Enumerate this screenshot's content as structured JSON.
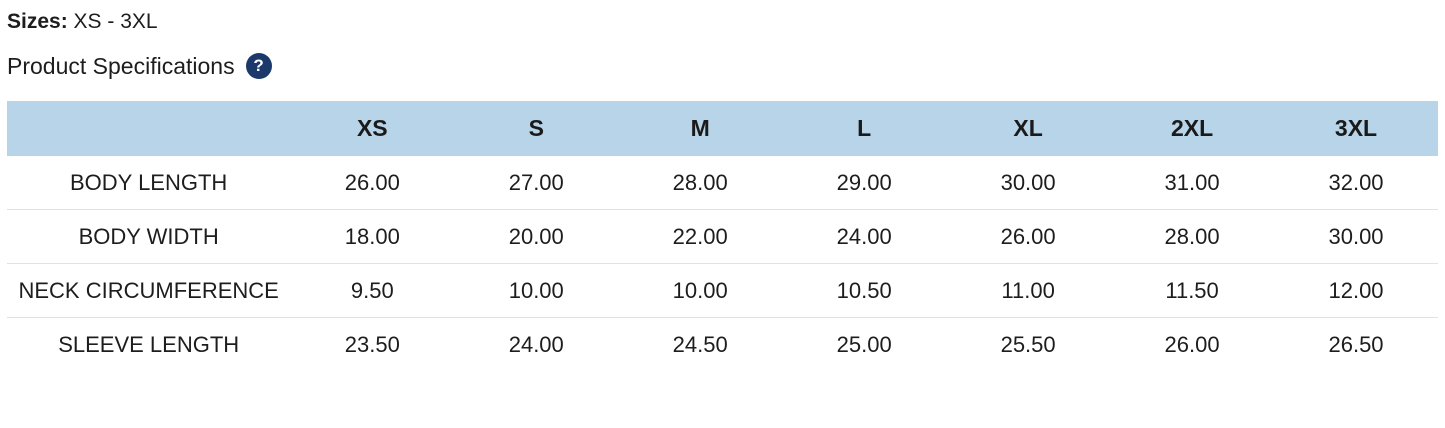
{
  "page": {
    "sizes_label": "Sizes:",
    "sizes_value": " XS - 3XL",
    "section_title": "Product Specifications",
    "help_icon_glyph": "?"
  },
  "table": {
    "columns": [
      "",
      "XS",
      "S",
      "M",
      "L",
      "XL",
      "2XL",
      "3XL"
    ],
    "rows": [
      {
        "label": "BODY LENGTH",
        "values": [
          "26.00",
          "27.00",
          "28.00",
          "29.00",
          "30.00",
          "31.00",
          "32.00"
        ]
      },
      {
        "label": "BODY WIDTH",
        "values": [
          "18.00",
          "20.00",
          "22.00",
          "24.00",
          "26.00",
          "28.00",
          "30.00"
        ]
      },
      {
        "label": "NECK CIRCUMFERENCE",
        "values": [
          "9.50",
          "10.00",
          "10.00",
          "10.50",
          "11.00",
          "11.50",
          "12.00"
        ]
      },
      {
        "label": "SLEEVE LENGTH",
        "values": [
          "23.50",
          "24.00",
          "24.50",
          "25.00",
          "25.50",
          "26.00",
          "26.50"
        ]
      }
    ]
  },
  "colors": {
    "header_background": "#b8d4e8",
    "help_icon_background": "#1b3a6b",
    "row_divider": "#e2e2e2",
    "text": "#1d1d1d"
  }
}
